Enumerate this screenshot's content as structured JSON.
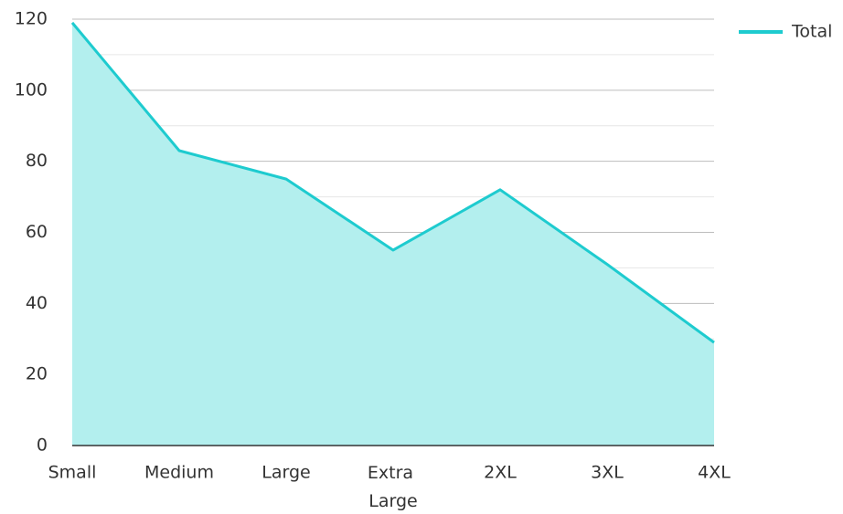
{
  "chart_data": {
    "type": "area",
    "categories": [
      "Small",
      "Medium",
      "Large",
      "Extra Large",
      "2XL",
      "3XL",
      "4XL"
    ],
    "series": [
      {
        "name": "Total",
        "color": "#1ecbcf",
        "fill": "#b3efee",
        "values": [
          119,
          83,
          75,
          55,
          72,
          51,
          29
        ]
      }
    ],
    "ylim": [
      0,
      120
    ],
    "yticks": [
      0,
      20,
      40,
      60,
      80,
      100,
      120
    ],
    "minor_yticks": [
      10,
      30,
      50,
      70,
      90,
      110
    ],
    "grid": true,
    "legend": "top-right"
  }
}
